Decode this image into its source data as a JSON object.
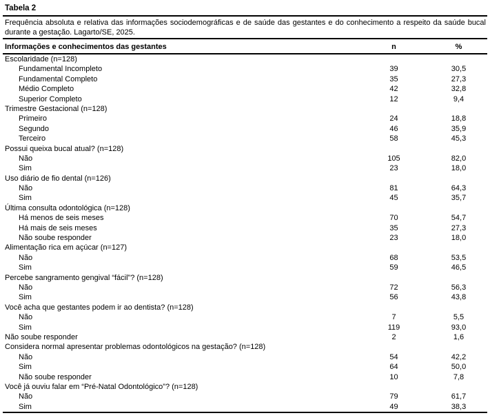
{
  "table": {
    "title": "Tabela 2",
    "caption": "Frequência absoluta e relativa das informações sociodemográficas e de saúde das gestantes e do conhecimento a respeito da saúde bucal durante a gestação. Lagarto/SE, 2025.",
    "header": {
      "col1": "Informações e conhecimentos das gestantes",
      "col2": "n",
      "col3": "%"
    },
    "rows": [
      {
        "label": "Escolaridade (n=128)",
        "indent": 0,
        "n": "",
        "pct": ""
      },
      {
        "label": "Fundamental Incompleto",
        "indent": 1,
        "n": "39",
        "pct": "30,5"
      },
      {
        "label": "Fundamental Completo",
        "indent": 1,
        "n": "35",
        "pct": "27,3"
      },
      {
        "label": "Médio Completo",
        "indent": 1,
        "n": "42",
        "pct": "32,8"
      },
      {
        "label": "Superior Completo",
        "indent": 1,
        "n": "12",
        "pct": "9,4"
      },
      {
        "label": "Trimestre Gestacional (n=128)",
        "indent": 0,
        "n": "",
        "pct": ""
      },
      {
        "label": "Primeiro",
        "indent": 1,
        "n": "24",
        "pct": "18,8"
      },
      {
        "label": "Segundo",
        "indent": 1,
        "n": "46",
        "pct": "35,9"
      },
      {
        "label": "Terceiro",
        "indent": 1,
        "n": "58",
        "pct": "45,3"
      },
      {
        "label": "Possui queixa bucal atual? (n=128)",
        "indent": 0,
        "n": "",
        "pct": ""
      },
      {
        "label": "Não",
        "indent": 1,
        "n": "105",
        "pct": "82,0"
      },
      {
        "label": "Sim",
        "indent": 1,
        "n": "23",
        "pct": "18,0"
      },
      {
        "label": "Uso diário de fio dental (n=126)",
        "indent": 0,
        "n": "",
        "pct": ""
      },
      {
        "label": "Não",
        "indent": 1,
        "n": "81",
        "pct": "64,3"
      },
      {
        "label": "Sim",
        "indent": 1,
        "n": "45",
        "pct": "35,7"
      },
      {
        "label": "Última consulta odontológica (n=128)",
        "indent": 0,
        "n": "",
        "pct": ""
      },
      {
        "label": "Há menos de seis meses",
        "indent": 1,
        "n": "70",
        "pct": "54,7"
      },
      {
        "label": "Há mais de seis meses",
        "indent": 1,
        "n": "35",
        "pct": "27,3"
      },
      {
        "label": "Não soube responder",
        "indent": 1,
        "n": "23",
        "pct": "18,0"
      },
      {
        "label": "Alimentação rica em açúcar (n=127)",
        "indent": 0,
        "n": "",
        "pct": ""
      },
      {
        "label": "Não",
        "indent": 1,
        "n": "68",
        "pct": "53,5"
      },
      {
        "label": "Sim",
        "indent": 1,
        "n": "59",
        "pct": "46,5"
      },
      {
        "label": "Percebe sangramento gengival “fácil”? (n=128)",
        "indent": 0,
        "n": "",
        "pct": ""
      },
      {
        "label": "Não",
        "indent": 1,
        "n": "72",
        "pct": "56,3"
      },
      {
        "label": "Sim",
        "indent": 1,
        "n": "56",
        "pct": "43,8"
      },
      {
        "label": "Você acha que gestantes podem ir ao dentista? (n=128)",
        "indent": 0,
        "n": "",
        "pct": ""
      },
      {
        "label": "Não",
        "indent": 1,
        "n": "7",
        "pct": "5,5"
      },
      {
        "label": "Sim",
        "indent": 1,
        "n": "119",
        "pct": "93,0"
      },
      {
        "label": "Não soube responder",
        "indent": 0,
        "n": "2",
        "pct": "1,6"
      },
      {
        "label": "Considera normal apresentar problemas odontológicos na gestação?  (n=128)",
        "indent": 0,
        "n": "",
        "pct": ""
      },
      {
        "label": "Não",
        "indent": 1,
        "n": "54",
        "pct": "42,2"
      },
      {
        "label": "Sim",
        "indent": 1,
        "n": "64",
        "pct": "50,0"
      },
      {
        "label": "Não soube responder",
        "indent": 1,
        "n": "10",
        "pct": "7,8"
      },
      {
        "label": "Você já ouviu falar em “Pré-Natal Odontológico”? (n=128)",
        "indent": 0,
        "n": "",
        "pct": ""
      },
      {
        "label": "Não",
        "indent": 1,
        "n": "79",
        "pct": "61,7"
      },
      {
        "label": "Sim",
        "indent": 1,
        "n": "49",
        "pct": "38,3"
      }
    ]
  }
}
